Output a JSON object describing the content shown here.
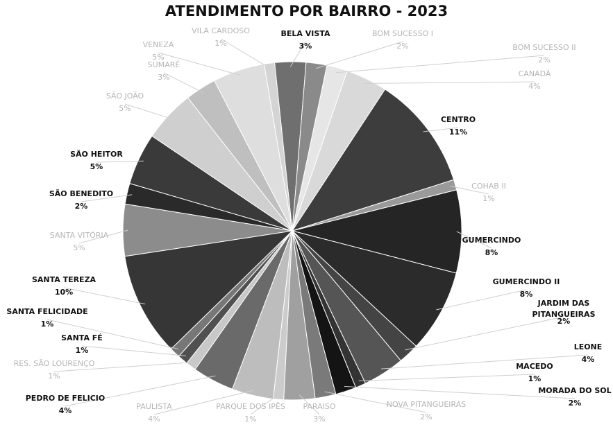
{
  "chart_data": {
    "type": "pie",
    "title": "ATENDIMENTO POR BAIRRO - 2023",
    "unit": "%",
    "slices": [
      {
        "label": "BELA VISTA",
        "value": 3,
        "value_label": "3%",
        "color": "#6f6f6f",
        "label_style": "dark"
      },
      {
        "label": "BOM SUCESSO I",
        "value": 2,
        "value_label": "2%",
        "color": "#8a8a8a",
        "label_style": "light"
      },
      {
        "label": "BOM SUCESSO II",
        "value": 2,
        "value_label": "2%",
        "color": "#e6e6e6",
        "label_style": "light"
      },
      {
        "label": "CANADÁ",
        "value": 4,
        "value_label": "4%",
        "color": "#d9d9d9",
        "label_style": "light"
      },
      {
        "label": "CENTRO",
        "value": 11,
        "value_label": "11%",
        "color": "#3d3d3d",
        "label_style": "dark"
      },
      {
        "label": "COHAB II",
        "value": 1,
        "value_label": "1%",
        "color": "#9a9a9a",
        "label_style": "light"
      },
      {
        "label": "GUMERCINDO",
        "value": 8,
        "value_label": "8%",
        "color": "#252525",
        "label_style": "dark"
      },
      {
        "label": "GUMERCINDO II",
        "value": 8,
        "value_label": "8%",
        "color": "#2b2b2b",
        "label_style": "dark"
      },
      {
        "label": "JARDIM DAS PITANGUEIRAS",
        "value": 2,
        "value_label": "2%",
        "color": "#444444",
        "label_style": "dark"
      },
      {
        "label": "LEONE",
        "value": 4,
        "value_label": "4%",
        "color": "#555555",
        "label_style": "dark"
      },
      {
        "label": "MACEDO",
        "value": 1,
        "value_label": "1%",
        "color": "#333333",
        "label_style": "dark"
      },
      {
        "label": "MORADA DO SOL",
        "value": 2,
        "value_label": "2%",
        "color": "#141414",
        "label_style": "dark"
      },
      {
        "label": "NOVA PITANGUEIRAS",
        "value": 2,
        "value_label": "2%",
        "color": "#7a7a7a",
        "label_style": "light"
      },
      {
        "label": "PARAISO",
        "value": 3,
        "value_label": "3%",
        "color": "#a0a0a0",
        "label_style": "light"
      },
      {
        "label": "PARQUE DOS IPÊS",
        "value": 1,
        "value_label": "1%",
        "color": "#cccccc",
        "label_style": "light"
      },
      {
        "label": "PAULISTA",
        "value": 4,
        "value_label": "4%",
        "color": "#bdbdbd",
        "label_style": "light"
      },
      {
        "label": "PEDRO DE FELICIO",
        "value": 4,
        "value_label": "4%",
        "color": "#6a6a6a",
        "label_style": "dark"
      },
      {
        "label": "RES. SÃO LOURENÇO",
        "value": 1,
        "value_label": "1%",
        "color": "#c8c8c8",
        "label_style": "light"
      },
      {
        "label": "SANTA FÉ",
        "value": 1,
        "value_label": "1%",
        "color": "#505050",
        "label_style": "dark"
      },
      {
        "label": "SANTA FELICIDADE",
        "value": 1,
        "value_label": "1%",
        "color": "#777777",
        "label_style": "dark"
      },
      {
        "label": "SANTA TEREZA",
        "value": 10,
        "value_label": "10%",
        "color": "#363636",
        "label_style": "dark"
      },
      {
        "label": "SANTA VITÓRIA",
        "value": 5,
        "value_label": "5%",
        "color": "#8c8c8c",
        "label_style": "light"
      },
      {
        "label": "SÃO BENEDITO",
        "value": 2,
        "value_label": "2%",
        "color": "#2a2a2a",
        "label_style": "dark"
      },
      {
        "label": "SÃO HEITOR",
        "value": 5,
        "value_label": "5%",
        "color": "#3a3a3a",
        "label_style": "dark"
      },
      {
        "label": "SÃO JOÃO",
        "value": 5,
        "value_label": "5%",
        "color": "#cfcfcf",
        "label_style": "light"
      },
      {
        "label": "SUMARÉ",
        "value": 3,
        "value_label": "3%",
        "color": "#bfbfbf",
        "label_style": "light"
      },
      {
        "label": "VENEZA",
        "value": 5,
        "value_label": "5%",
        "color": "#dedede",
        "label_style": "light"
      },
      {
        "label": "VILA CARDOSO",
        "value": 1,
        "value_label": "1%",
        "color": "#d4d4d4",
        "label_style": "light"
      }
    ],
    "legend": "none",
    "label_placement": "outside with leader lines"
  }
}
